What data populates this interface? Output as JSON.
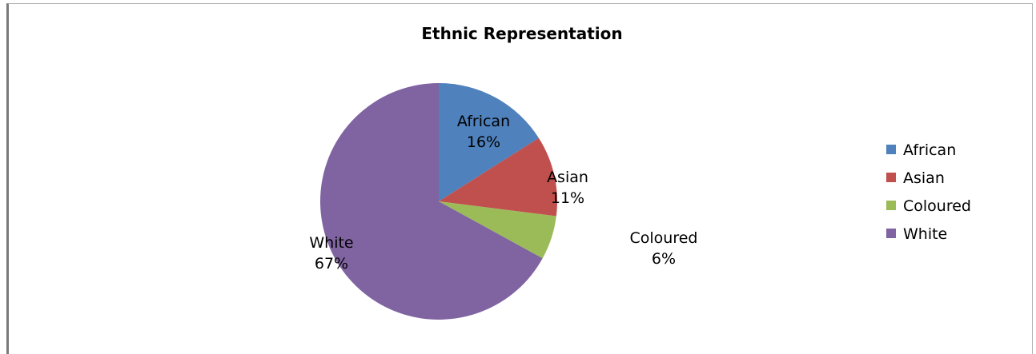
{
  "chart_data": {
    "type": "pie",
    "title": "Ethnic Representation",
    "categories": [
      "African",
      "Asian",
      "Coloured",
      "White"
    ],
    "values": [
      16,
      11,
      6,
      67
    ],
    "value_labels": [
      "16%",
      "11%",
      "6%",
      "67%"
    ],
    "colors": [
      "#4F81BD",
      "#C0504D",
      "#9BBB59",
      "#8064A2"
    ],
    "legend_placement": "right",
    "legend": [
      "African",
      "Asian",
      "Coloured",
      "White"
    ]
  }
}
